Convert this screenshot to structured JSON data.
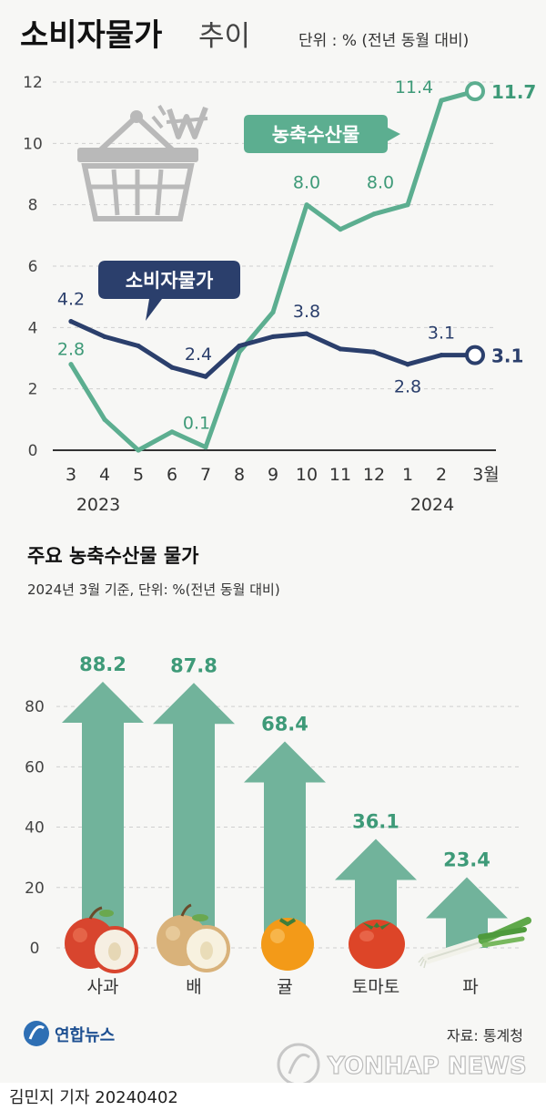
{
  "header": {
    "title_main": "소비자물가",
    "title_sub": "추이",
    "unit_note": "단위 : % (전년 동월 대비)"
  },
  "colors": {
    "cpi": "#2b3f6c",
    "agri": "#5cae90",
    "agri_text": "#3e9a78",
    "arrow": "#71b39b",
    "grid": "#cfcfcf",
    "axis": "#333333",
    "icon_gray": "#b9b9b9"
  },
  "icons": {
    "basket": "shopping-basket-icon",
    "won": "won-sign-icon",
    "apple": "apple-icon",
    "pear": "pear-icon",
    "tangerine": "tangerine-icon",
    "tomato": "tomato-icon",
    "green_onion": "green-onion-icon",
    "yonhap_logo": "yonhap-logo-icon"
  },
  "chart_data": [
    {
      "type": "line",
      "x": [
        "3",
        "4",
        "5",
        "6",
        "7",
        "8",
        "9",
        "10",
        "11",
        "12",
        "1",
        "2",
        "3월"
      ],
      "x_year_labels": [
        "2023",
        "2024"
      ],
      "ylim": [
        0,
        12
      ],
      "yticks": [
        0,
        2,
        4,
        6,
        8,
        10,
        12
      ],
      "grid": true,
      "series": [
        {
          "name": "소비자물가",
          "values": [
            4.2,
            3.7,
            3.4,
            2.7,
            2.4,
            3.4,
            3.7,
            3.8,
            3.3,
            3.2,
            2.8,
            3.1,
            3.1
          ],
          "labels": {
            "0": "4.2",
            "4": "2.4",
            "7": "3.8",
            "10": "2.8",
            "11": "3.1",
            "12": "3.1"
          }
        },
        {
          "name": "농축수산물",
          "values": [
            2.8,
            1.0,
            0.0,
            0.6,
            0.1,
            3.2,
            4.5,
            8.0,
            7.2,
            7.7,
            8.0,
            11.4,
            11.7
          ],
          "labels": {
            "0": "2.8",
            "4": "0.1",
            "7": "8.0",
            "10": "8.0",
            "11": "11.4",
            "12": "11.7"
          }
        }
      ]
    },
    {
      "type": "bar",
      "title": "주요 농축수산물 물가",
      "subtitle": "2024년 3월 기준, 단위: %(전년 동월 대비)",
      "categories": [
        "사과",
        "배",
        "귤",
        "토마토",
        "파"
      ],
      "values": [
        88.2,
        87.8,
        68.4,
        36.1,
        23.4
      ],
      "ylim": [
        0,
        90
      ],
      "yticks": [
        0,
        20,
        40,
        60,
        80
      ],
      "grid": true
    }
  ],
  "footer": {
    "logo_text": "연합뉴스",
    "source": "자료: 통계청",
    "watermark": "YONHAP NEWS",
    "byline": "김민지 기자  20240402"
  }
}
